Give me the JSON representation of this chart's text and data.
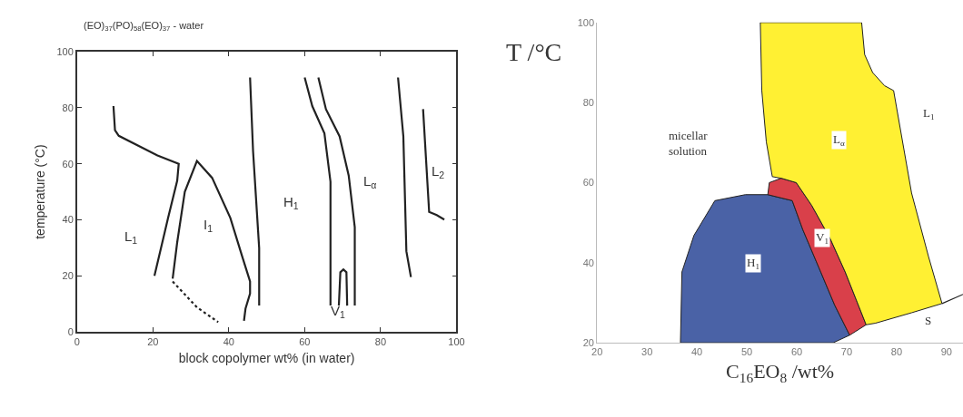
{
  "chart_data": [
    {
      "type": "line",
      "title": "(EO)$_{37}$(PO)$_{58}$(EO)$_{37}$ - water",
      "xlabel": "block copolymer wt% (in water)",
      "ylabel": "temperature (°C)",
      "xlim": [
        0,
        100
      ],
      "ylim": [
        0,
        100
      ],
      "xticks": [
        0,
        20,
        40,
        60,
        80,
        100
      ],
      "yticks": [
        0,
        20,
        40,
        60,
        80,
        100
      ],
      "marker": "none",
      "line_style": "solid",
      "series": [
        {
          "color": "#222222",
          "x": [
            9.6,
            10,
            11,
            21.2,
            26.8,
            26.4,
            24,
            20.4
          ],
          "values": [
            80.6,
            72,
            70,
            63,
            60,
            54,
            40.7,
            20
          ]
        },
        {
          "color": "#222222",
          "x": [
            25.2,
            26.4,
            28.4,
            31.6,
            35.6,
            40.4,
            43.6,
            45.6,
            45.6,
            44.4,
            44
          ],
          "values": [
            19,
            32,
            50,
            61,
            55,
            40.7,
            26.6,
            18,
            13.7,
            8.3,
            4
          ]
        },
        {
          "color": "#222222",
          "line_style": "dotted",
          "x": [
            25.2,
            31.6,
            37.2
          ],
          "values": [
            18,
            8.8,
            3.5
          ]
        },
        {
          "color": "#222222",
          "x": [
            45.6,
            46.4,
            48,
            48
          ],
          "values": [
            90.8,
            64.4,
            29.9,
            9.4
          ]
        },
        {
          "color": "#222222",
          "x": [
            60,
            62,
            65.2,
            66.8,
            66.8
          ],
          "values": [
            90.8,
            80.6,
            70.9,
            53.6,
            9.4
          ]
        },
        {
          "color": "#222222",
          "x": [
            63.6,
            65.6,
            69.2,
            71.6,
            73.2,
            73.2
          ],
          "values": [
            90.8,
            79.5,
            69.8,
            55.8,
            37.4,
            9.4
          ]
        },
        {
          "color": "#222222",
          "x": [
            69,
            69.4,
            70.2,
            71,
            71.2
          ],
          "values": [
            9.4,
            21.3,
            22.3,
            21.3,
            9.4
          ]
        },
        {
          "color": "#222222",
          "x": [
            84.6,
            86,
            86.8,
            88
          ],
          "values": [
            90.8,
            69.8,
            28.8,
            19.6
          ]
        },
        {
          "color": "#222222",
          "x": [
            91.2,
            92.8,
            94.8,
            96.8
          ],
          "values": [
            79.5,
            42.8,
            41.7,
            40.1
          ]
        }
      ],
      "annotations": [
        "L$_{1}$",
        "I$_{1}$",
        "H$_{1}$",
        "L$_{α}$",
        "L$_{2}$",
        "V$_{1}$"
      ]
    },
    {
      "type": "area",
      "xlabel": "C$_{16}$EO$_{8}$ /wt%",
      "ylabel": "T /°C",
      "xlim": [
        20,
        93.3
      ],
      "ylim": [
        20,
        100
      ],
      "xticks": [
        20,
        30,
        40,
        50,
        60,
        70,
        80,
        90
      ],
      "yticks": [
        20,
        40,
        60,
        80,
        100
      ],
      "series": [
        {
          "color": "#4a62a6",
          "x": [
            36.7,
            37,
            39.4,
            43.6,
            49.7,
            54.2,
            59.1,
            61.2,
            64.8,
            67.6,
            70.6,
            67.3,
            36.7
          ],
          "values": [
            20,
            37.7,
            46.8,
            55.5,
            57,
            57,
            55.5,
            48.3,
            37.7,
            29.4,
            21.9,
            20,
            20
          ]
        },
        {
          "color": "#d9404a",
          "x": [
            54.2,
            54.5,
            56.9,
            59.9,
            63,
            66.7,
            69.7,
            73.9,
            70.6,
            67.6,
            64.8,
            61.2,
            59.1,
            54.2
          ],
          "values": [
            57,
            60,
            61.1,
            60,
            54.3,
            46,
            37.7,
            24.5,
            21.9,
            29.4,
            37.7,
            48.3,
            55.5,
            57
          ]
        },
        {
          "color": "#fff033",
          "x": [
            52.7,
            53,
            53.9,
            55.1,
            56.9,
            59.9,
            63,
            66.7,
            69.7,
            73.9,
            75.8,
            83,
            89.1,
            86.4,
            83,
            79.4,
            77.6,
            75.2,
            73.6,
            73,
            52.7
          ],
          "values": [
            100,
            83,
            70.2,
            61.5,
            61.1,
            60,
            54.3,
            46,
            37.7,
            24.5,
            24.9,
            27.5,
            29.8,
            41.5,
            57.4,
            83,
            84.2,
            87.5,
            92,
            100,
            100
          ]
        },
        {
          "type": "line",
          "color": "#222222",
          "x": [
            89.1,
            93.3
          ],
          "values": [
            29.8,
            32.1
          ]
        }
      ],
      "annotations": [
        "micellar\nsolution",
        "L$_{α}$",
        "V$_{1}$",
        "H$_{1}$",
        "L$_{1}$",
        "S"
      ]
    }
  ]
}
